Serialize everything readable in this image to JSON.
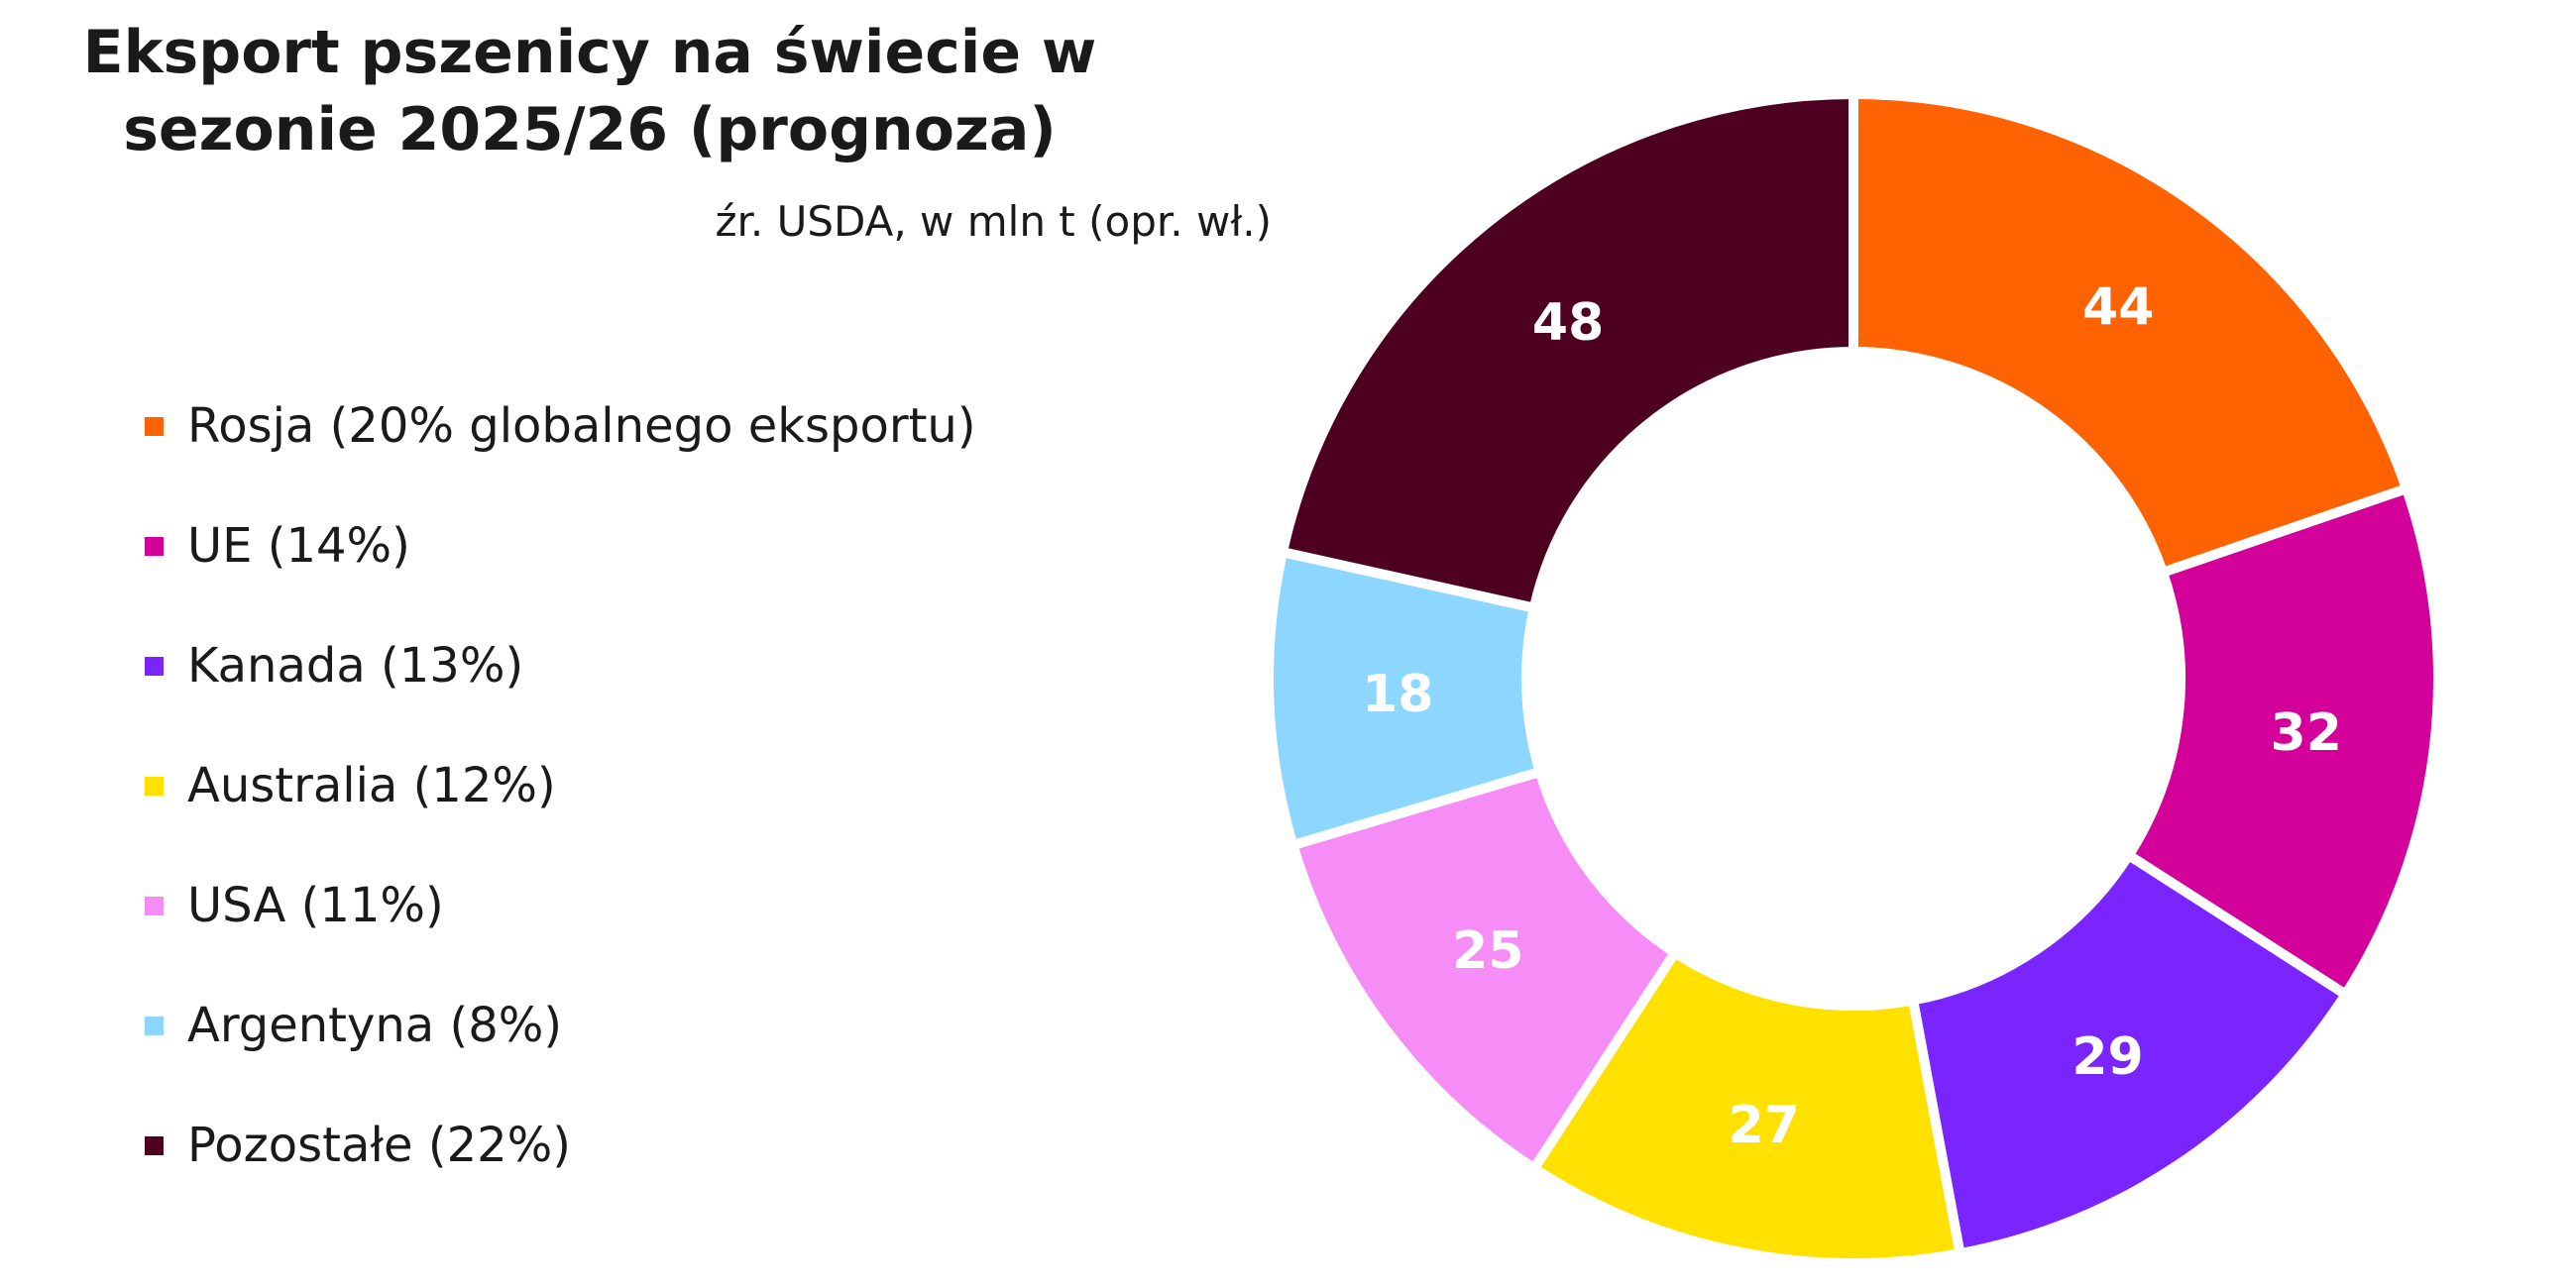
{
  "chart_data": {
    "type": "pie",
    "title": "Eksport pszenicy na świecie w sezonie 2025/26 (prognoza)",
    "subtitle": "źr. USDA, w mln t (opr. wł.)",
    "donut": true,
    "legend_position": "left",
    "categories": [
      "Rosja (20% globalnego eksportu)",
      "UE (14%)",
      "Kanada (13%)",
      "Australia (12%)",
      "USA (11%)",
      "Argentyna (8%)",
      "Pozostałe (22%)"
    ],
    "values": [
      44,
      32,
      29,
      27,
      25,
      18,
      48
    ],
    "colors": [
      "#FF6200",
      "#D3009A",
      "#7A24FF",
      "#FFE100",
      "#F68DF7",
      "#8DD7FF",
      "#4D0020"
    ],
    "data_labels": [
      "44",
      "32",
      "29",
      "27",
      "25",
      "18",
      "48"
    ]
  }
}
